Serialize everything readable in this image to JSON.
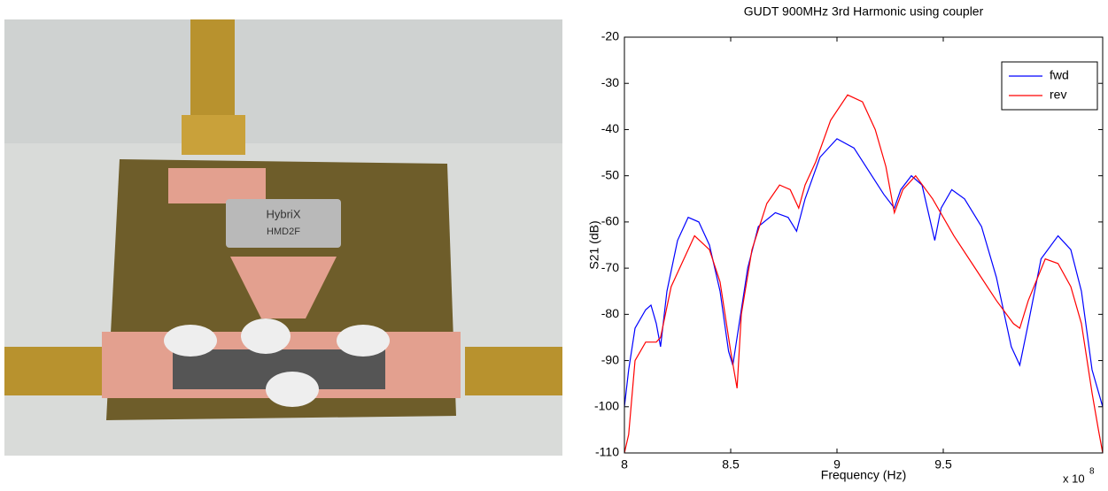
{
  "chart_data": {
    "type": "line",
    "title": "GUDT 900MHz 3rd Harmonic using coupler",
    "x_label": "Frequency (Hz)",
    "y_label": "S21 (dB)",
    "x_multiplier": "x 10",
    "x_multiplier_exponent": "8",
    "xlim": [
      8,
      10.25
    ],
    "xticks": [
      8,
      8.5,
      9,
      9.5
    ],
    "ylim": [
      -110,
      -20
    ],
    "yticks": [
      -110,
      -100,
      -90,
      -80,
      -70,
      -60,
      -50,
      -40,
      -30,
      -20
    ],
    "grid": false,
    "legend": "northeast",
    "series": [
      {
        "name": "fwd",
        "color": "#0000ff",
        "x": [
          8.0,
          8.02,
          8.05,
          8.1,
          8.125,
          8.15,
          8.17,
          8.2,
          8.25,
          8.3,
          8.35,
          8.4,
          8.45,
          8.49,
          8.51,
          8.53,
          8.58,
          8.63,
          8.71,
          8.77,
          8.81,
          8.85,
          8.92,
          9.0,
          9.08,
          9.15,
          9.22,
          9.27,
          9.3,
          9.35,
          9.4,
          9.46,
          9.49,
          9.54,
          9.6,
          9.68,
          9.75,
          9.82,
          9.86,
          9.9,
          9.96,
          10.04,
          10.1,
          10.15,
          10.2,
          10.25
        ],
        "values": [
          -100,
          -92,
          -83,
          -79,
          -78,
          -82,
          -87,
          -75,
          -64,
          -59,
          -60,
          -65,
          -75,
          -88,
          -91,
          -85,
          -70,
          -61,
          -58,
          -59,
          -62,
          -55,
          -46,
          -42,
          -44,
          -49,
          -54,
          -57,
          -53,
          -50,
          -52,
          -64,
          -57,
          -53,
          -55,
          -61,
          -72,
          -87,
          -91,
          -82,
          -68,
          -63,
          -66,
          -75,
          -92,
          -100
        ]
      },
      {
        "name": "rev",
        "color": "#ff0000",
        "x": [
          8.0,
          8.02,
          8.05,
          8.1,
          8.15,
          8.17,
          8.22,
          8.33,
          8.4,
          8.45,
          8.5,
          8.53,
          8.55,
          8.6,
          8.67,
          8.73,
          8.78,
          8.82,
          8.85,
          8.9,
          8.97,
          9.05,
          9.12,
          9.18,
          9.23,
          9.27,
          9.31,
          9.37,
          9.45,
          9.55,
          9.65,
          9.75,
          9.83,
          9.86,
          9.9,
          9.98,
          10.04,
          10.1,
          10.15,
          10.2,
          10.23,
          10.25
        ],
        "values": [
          -110,
          -106,
          -90,
          -86,
          -86,
          -85,
          -74,
          -63,
          -66,
          -73,
          -88,
          -96,
          -80,
          -66,
          -56,
          -52,
          -53,
          -57,
          -52,
          -47,
          -38,
          -32.5,
          -34,
          -40,
          -48,
          -58,
          -53,
          -50,
          -55,
          -63,
          -70,
          -77,
          -82,
          -83,
          -77,
          -68,
          -69,
          -74,
          -82,
          -97,
          -105,
          -110
        ]
      }
    ]
  }
}
